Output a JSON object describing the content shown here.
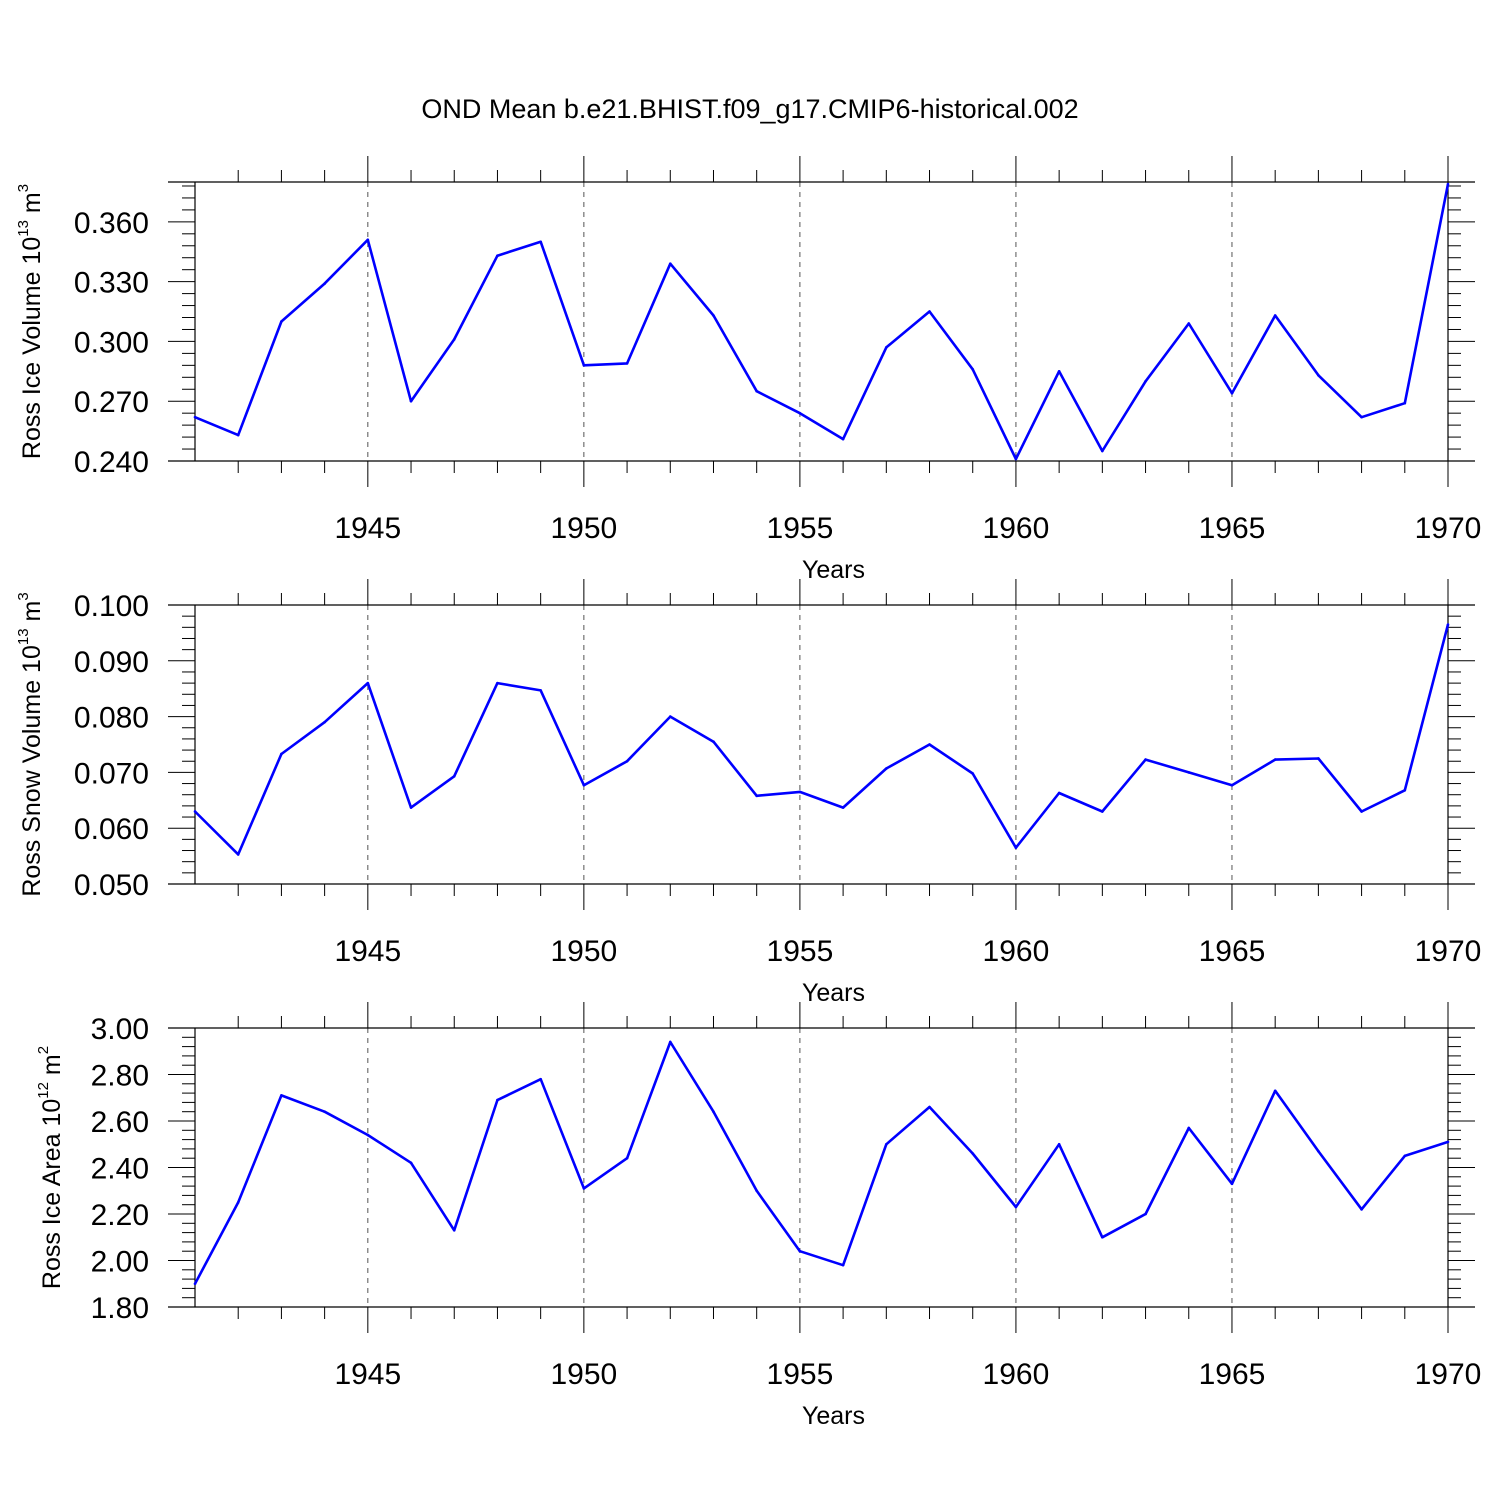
{
  "chart_data": [
    {
      "type": "line",
      "title": "OND Mean b.e21.BHIST.f09_g17.CMIP6-historical.002",
      "ylabel": {
        "text": "Ross Ice Volume 10",
        "exponent": "13",
        "unit": "m",
        "unit_exponent": "3"
      },
      "xlabel": "Years",
      "xlim": [
        1941,
        1970
      ],
      "ylim": [
        0.24,
        0.38
      ],
      "yticks": [
        "0.240",
        "0.270",
        "0.300",
        "0.330",
        "0.360"
      ],
      "ytick_values": [
        0.24,
        0.27,
        0.3,
        0.33,
        0.36
      ],
      "xticks": [
        "1945",
        "1950",
        "1955",
        "1960",
        "1965",
        "1970"
      ],
      "xtick_values": [
        1945,
        1950,
        1955,
        1960,
        1965,
        1970
      ],
      "grid": "dashed vertical at major x ticks",
      "color": "#0000ff",
      "x": [
        1941,
        1942,
        1943,
        1944,
        1945,
        1946,
        1947,
        1948,
        1949,
        1950,
        1951,
        1952,
        1953,
        1954,
        1955,
        1956,
        1957,
        1958,
        1959,
        1960,
        1961,
        1962,
        1963,
        1964,
        1965,
        1966,
        1967,
        1968,
        1969,
        1970
      ],
      "values": [
        0.262,
        0.253,
        0.31,
        0.329,
        0.351,
        0.27,
        0.301,
        0.343,
        0.35,
        0.288,
        0.289,
        0.339,
        0.313,
        0.275,
        0.264,
        0.251,
        0.297,
        0.315,
        0.286,
        0.241,
        0.285,
        0.245,
        0.28,
        0.309,
        0.274,
        0.313,
        0.283,
        0.262,
        0.269,
        0.379
      ]
    },
    {
      "type": "line",
      "ylabel": {
        "text": "Ross Snow Volume 10",
        "exponent": "13",
        "unit": "m",
        "unit_exponent": "3"
      },
      "xlabel": "Years",
      "xlim": [
        1941,
        1970
      ],
      "ylim": [
        0.05,
        0.1
      ],
      "yticks": [
        "0.050",
        "0.060",
        "0.070",
        "0.080",
        "0.090",
        "0.100"
      ],
      "ytick_values": [
        0.05,
        0.06,
        0.07,
        0.08,
        0.09,
        0.1
      ],
      "xticks": [
        "1945",
        "1950",
        "1955",
        "1960",
        "1965",
        "1970"
      ],
      "xtick_values": [
        1945,
        1950,
        1955,
        1960,
        1965,
        1970
      ],
      "grid": "dashed vertical at major x ticks",
      "color": "#0000ff",
      "x": [
        1941,
        1942,
        1943,
        1944,
        1945,
        1946,
        1947,
        1948,
        1949,
        1950,
        1951,
        1952,
        1953,
        1954,
        1955,
        1956,
        1957,
        1958,
        1959,
        1960,
        1961,
        1962,
        1963,
        1964,
        1965,
        1966,
        1967,
        1968,
        1969,
        1970
      ],
      "values": [
        0.063,
        0.0553,
        0.0733,
        0.079,
        0.086,
        0.0637,
        0.0693,
        0.086,
        0.0847,
        0.0677,
        0.072,
        0.08,
        0.0755,
        0.0658,
        0.0665,
        0.0637,
        0.0707,
        0.075,
        0.0698,
        0.0565,
        0.0663,
        0.063,
        0.0723,
        0.07,
        0.0677,
        0.0723,
        0.0725,
        0.063,
        0.0668,
        0.0965
      ]
    },
    {
      "type": "line",
      "ylabel": {
        "text": "Ross Ice Area 10",
        "exponent": "12",
        "unit": "m",
        "unit_exponent": "2"
      },
      "xlabel": "Years",
      "xlim": [
        1941,
        1970
      ],
      "ylim": [
        1.8,
        3.0
      ],
      "yticks": [
        "1.80",
        "2.00",
        "2.20",
        "2.40",
        "2.60",
        "2.80",
        "3.00"
      ],
      "ytick_values": [
        1.8,
        2.0,
        2.2,
        2.4,
        2.6,
        2.8,
        3.0
      ],
      "xticks": [
        "1945",
        "1950",
        "1955",
        "1960",
        "1965",
        "1970"
      ],
      "xtick_values": [
        1945,
        1950,
        1955,
        1960,
        1965,
        1970
      ],
      "grid": "dashed vertical at major x ticks",
      "color": "#0000ff",
      "x": [
        1941,
        1942,
        1943,
        1944,
        1945,
        1946,
        1947,
        1948,
        1949,
        1950,
        1951,
        1952,
        1953,
        1954,
        1955,
        1956,
        1957,
        1958,
        1959,
        1960,
        1961,
        1962,
        1963,
        1964,
        1965,
        1966,
        1967,
        1968,
        1969,
        1970
      ],
      "values": [
        1.9,
        2.25,
        2.71,
        2.64,
        2.54,
        2.42,
        2.13,
        2.69,
        2.78,
        2.31,
        2.44,
        2.94,
        2.64,
        2.3,
        2.04,
        1.98,
        2.5,
        2.66,
        2.46,
        2.23,
        2.5,
        2.1,
        2.2,
        2.57,
        2.33,
        2.73,
        2.47,
        2.22,
        2.45,
        2.51
      ]
    }
  ]
}
